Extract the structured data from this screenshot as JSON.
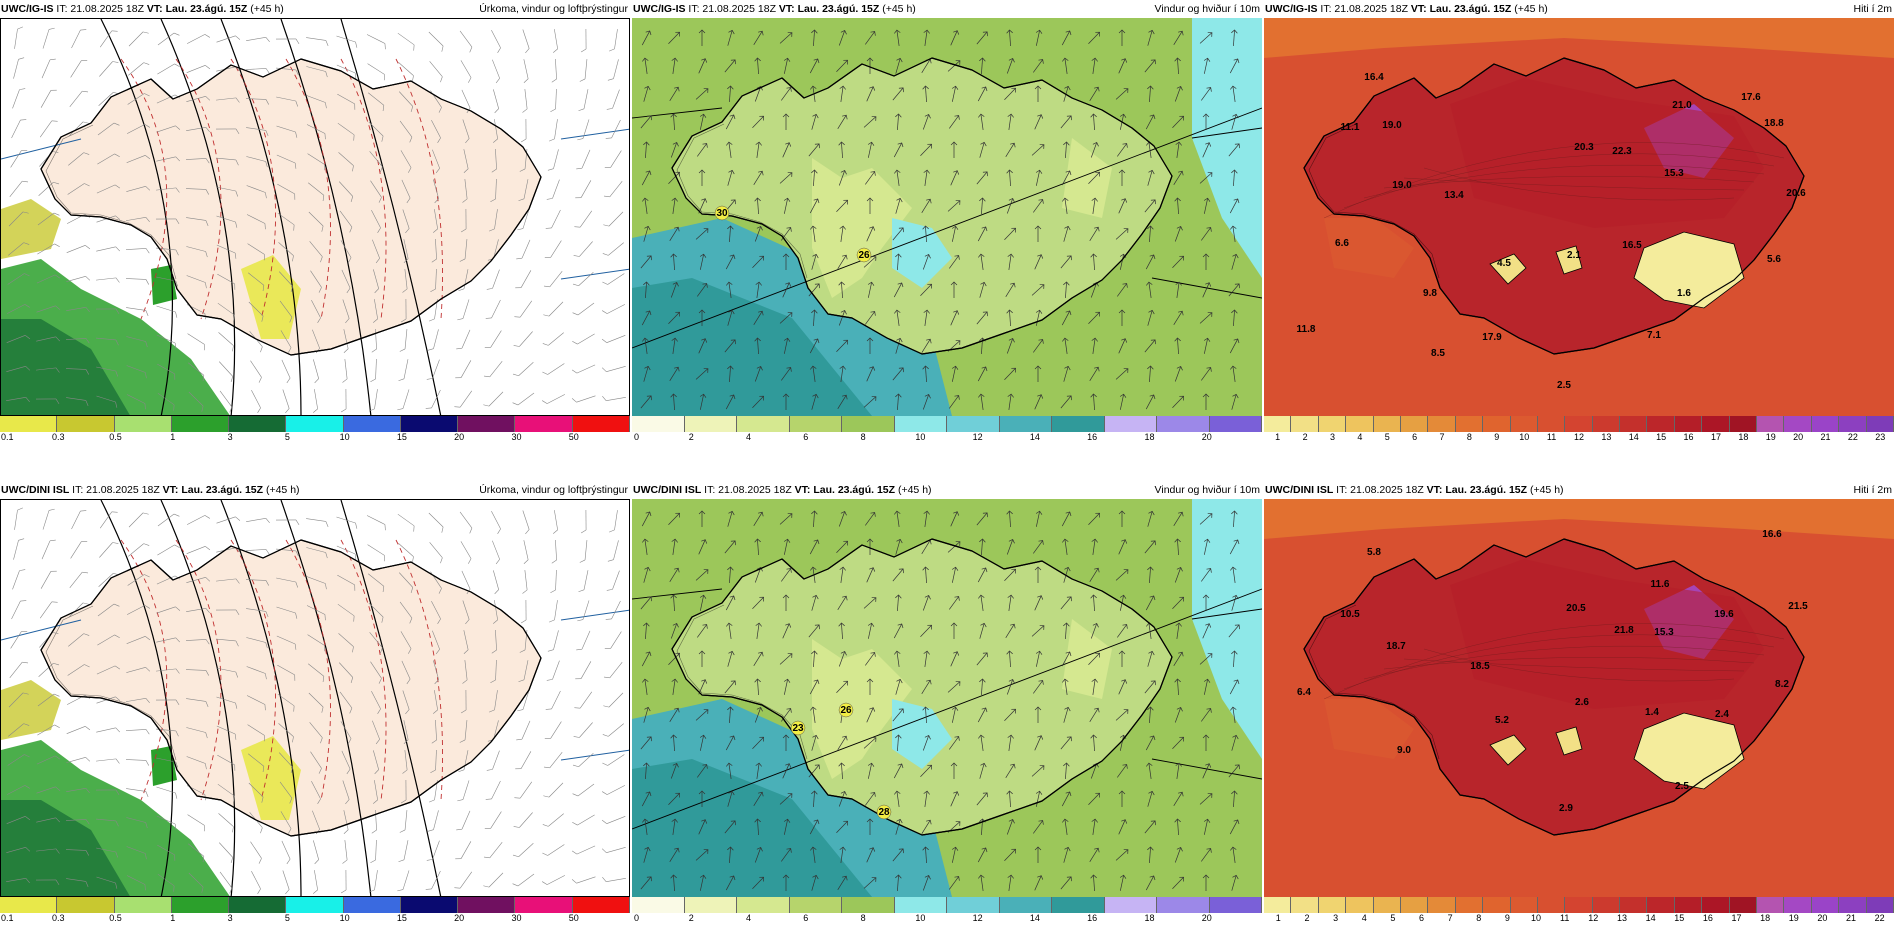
{
  "rows": [
    {
      "model": "UWC/IG-IS",
      "it": "IT: 21.08.2025 18Z",
      "vt": "VT: Lau. 23.ágú. 15Z",
      "lead": "(+45 h)",
      "precip_scale": [
        "0.1",
        "0.3",
        "0.5",
        "1",
        "3",
        "5",
        "10",
        "15",
        "20",
        "30",
        "50"
      ],
      "wind_scale": [
        "0",
        "2",
        "4",
        "6",
        "8",
        "10",
        "12",
        "14",
        "16",
        "18",
        "20"
      ],
      "temp_scale": [
        "1",
        "2",
        "3",
        "4",
        "5",
        "6",
        "7",
        "8",
        "9",
        "10",
        "11",
        "12",
        "13",
        "14",
        "15",
        "16",
        "17",
        "18",
        "19",
        "20",
        "21",
        "22",
        "23"
      ],
      "wind_labels": [
        "30",
        "26"
      ],
      "temp_labels": [
        "16.4",
        "17.6",
        "11.1",
        "19.0",
        "21.0",
        "18.8",
        "20.3",
        "22.3",
        "19.0",
        "13.4",
        "15.3",
        "20.6",
        "6.6",
        "4.5",
        "2.1",
        "16.5",
        "5.6",
        "9.8",
        "1.6",
        "11.8",
        "17.9",
        "7.1",
        "8.5",
        "2.5"
      ]
    },
    {
      "model": "UWC/DINI ISL",
      "it": "IT: 21.08.2025 18Z",
      "vt": "VT: Lau. 23.ágú. 15Z",
      "lead": "(+45 h)",
      "precip_scale": [
        "0.1",
        "0.3",
        "0.5",
        "1",
        "3",
        "5",
        "10",
        "15",
        "20",
        "30",
        "50"
      ],
      "wind_scale": [
        "0",
        "2",
        "4",
        "6",
        "8",
        "10",
        "12",
        "14",
        "16",
        "18",
        "20"
      ],
      "temp_scale": [
        "1",
        "2",
        "3",
        "4",
        "5",
        "6",
        "7",
        "8",
        "9",
        "10",
        "11",
        "12",
        "13",
        "14",
        "15",
        "16",
        "17",
        "18",
        "19",
        "20",
        "21",
        "22"
      ],
      "wind_labels": [
        "26",
        "23",
        "28"
      ],
      "temp_labels": [
        "5.8",
        "16.6",
        "10.5",
        "11.6",
        "20.5",
        "21.8",
        "15.3",
        "19.6",
        "21.5",
        "18.7",
        "18.5",
        "2.6",
        "8.2",
        "6.4",
        "1.4",
        "2.4",
        "5.2",
        "9.0",
        "2.5",
        "2.9"
      ]
    }
  ],
  "titles": {
    "precip": "Úrkoma, vindur og loftþrýstingur",
    "wind": "Vindur og hviður í 10m",
    "temp": "Hiti í 2m"
  },
  "colors": {
    "precip": [
      "#e8e84a",
      "#c8c830",
      "#a8e070",
      "#2ca02c",
      "#156b34",
      "#18f0e8",
      "#3a6ae0",
      "#0a0a70",
      "#701060",
      "#e81078",
      "#f01010"
    ],
    "wind": [
      "#fafae6",
      "#eef3b8",
      "#d5e890",
      "#b6d46c",
      "#9cc75a",
      "#8ee8e8",
      "#70cfd8",
      "#4ab0b8",
      "#309a9a",
      "#c6b4f4",
      "#9c88e8",
      "#7a60d8"
    ],
    "temp": [
      "#f4ec9c",
      "#f2e086",
      "#f0d470",
      "#eec45e",
      "#eab450",
      "#e6a042",
      "#e48a38",
      "#e27030",
      "#e0642e",
      "#dc5a30",
      "#d85030",
      "#d44430",
      "#cc3a2e",
      "#c4302c",
      "#bc262a",
      "#b41e28",
      "#ac1626",
      "#a01424",
      "#b454b0",
      "#a448c4",
      "#9a44c8",
      "#8c40c0",
      "#7e3cb8"
    ]
  },
  "land_colors": {
    "precip": "#fbeadc",
    "wind": "#bedb83",
    "temp": "#b8252b"
  }
}
